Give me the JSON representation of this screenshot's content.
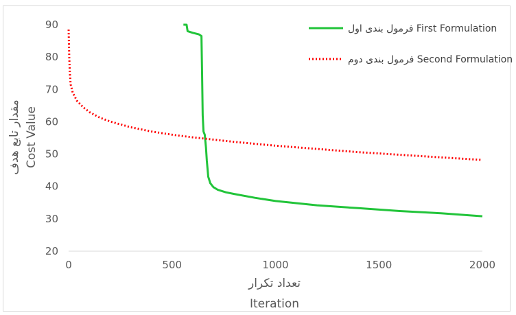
{
  "chart_data": {
    "type": "line",
    "xlabel_fa": "تعداد تکرار",
    "xlabel_en": "Iteration",
    "ylabel_fa": "مقدار تابع هدف",
    "ylabel_en": "Cost Value",
    "xlim": [
      0,
      2000
    ],
    "ylim": [
      20,
      90
    ],
    "x_ticks": [
      "0",
      "500",
      "1000",
      "1500",
      "2000"
    ],
    "y_ticks": [
      "20",
      "30",
      "40",
      "50",
      "60",
      "70",
      "80",
      "90"
    ],
    "grid": false,
    "legend_position": "top-right",
    "series": [
      {
        "name": "فرمول بندی اول First Formulation",
        "color": "#22c43a",
        "style": "solid",
        "points": [
          [
            555,
            90
          ],
          [
            570,
            90
          ],
          [
            575,
            88
          ],
          [
            600,
            87.5
          ],
          [
            630,
            87
          ],
          [
            642,
            86.5
          ],
          [
            645,
            75
          ],
          [
            648,
            62
          ],
          [
            652,
            57
          ],
          [
            658,
            56
          ],
          [
            664,
            52
          ],
          [
            668,
            48
          ],
          [
            675,
            43
          ],
          [
            685,
            41
          ],
          [
            700,
            39.8
          ],
          [
            720,
            39
          ],
          [
            760,
            38.2
          ],
          [
            800,
            37.7
          ],
          [
            900,
            36.5
          ],
          [
            1000,
            35.5
          ],
          [
            1200,
            34.2
          ],
          [
            1400,
            33.3
          ],
          [
            1600,
            32.4
          ],
          [
            1800,
            31.7
          ],
          [
            2000,
            30.8
          ]
        ]
      },
      {
        "name": "فرمول بندی دوم Second Formulation",
        "color": "#ff0000",
        "style": "dotted",
        "points": [
          [
            0,
            88.5
          ],
          [
            3,
            80
          ],
          [
            6,
            75
          ],
          [
            10,
            71.5
          ],
          [
            20,
            69
          ],
          [
            40,
            66.5
          ],
          [
            70,
            64.5
          ],
          [
            100,
            63
          ],
          [
            150,
            61.3
          ],
          [
            200,
            60.1
          ],
          [
            300,
            58.3
          ],
          [
            400,
            57
          ],
          [
            500,
            56
          ],
          [
            600,
            55.2
          ],
          [
            700,
            54.5
          ],
          [
            800,
            53.8
          ],
          [
            900,
            53.2
          ],
          [
            1000,
            52.6
          ],
          [
            1200,
            51.6
          ],
          [
            1400,
            50.6
          ],
          [
            1600,
            49.8
          ],
          [
            1800,
            49
          ],
          [
            2000,
            48.2
          ]
        ]
      }
    ]
  }
}
